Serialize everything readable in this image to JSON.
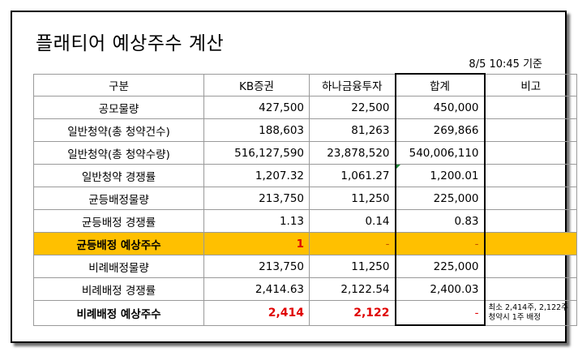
{
  "title": "플래티어 예상주수 계산",
  "as_of": "8/5 10:45 기준",
  "columns": [
    "구분",
    "KB증권",
    "하나금융투자",
    "합계",
    "비고"
  ],
  "rows": [
    {
      "label": "공모물량",
      "kb": "427,500",
      "hana": "22,500",
      "total": "450,000",
      "note": ""
    },
    {
      "label": "일반청약(총 청약건수)",
      "kb": "188,603",
      "hana": "81,263",
      "total": "269,866",
      "note": ""
    },
    {
      "label": "일반청약(총 청약수량)",
      "kb": "516,127,590",
      "hana": "23,878,520",
      "total": "540,006,110",
      "note": ""
    },
    {
      "label": "일반청약 경쟁률",
      "kb": "1,207.32",
      "hana": "1,061.27",
      "total": "1,200.01",
      "note": ""
    },
    {
      "label": "균등배정물량",
      "kb": "213,750",
      "hana": "11,250",
      "total": "225,000",
      "note": ""
    },
    {
      "label": "균등배정 경쟁률",
      "kb": "1.13",
      "hana": "0.14",
      "total": "0.83",
      "note": ""
    },
    {
      "label": "균등배정 예상주수",
      "kb": "1",
      "hana": "-",
      "total": "-",
      "note": ""
    },
    {
      "label": "비례배정물량",
      "kb": "213,750",
      "hana": "11,250",
      "total": "225,000",
      "note": ""
    },
    {
      "label": "비례배정 경쟁률",
      "kb": "2,414.63",
      "hana": "2,122.54",
      "total": "2,400.03",
      "note": ""
    },
    {
      "label": "비례배정 예상주수",
      "kb": "2,414",
      "hana": "2,122",
      "total": "-",
      "note": "최소 2,414주, 2,122주 청약시 1주 배정"
    }
  ]
}
